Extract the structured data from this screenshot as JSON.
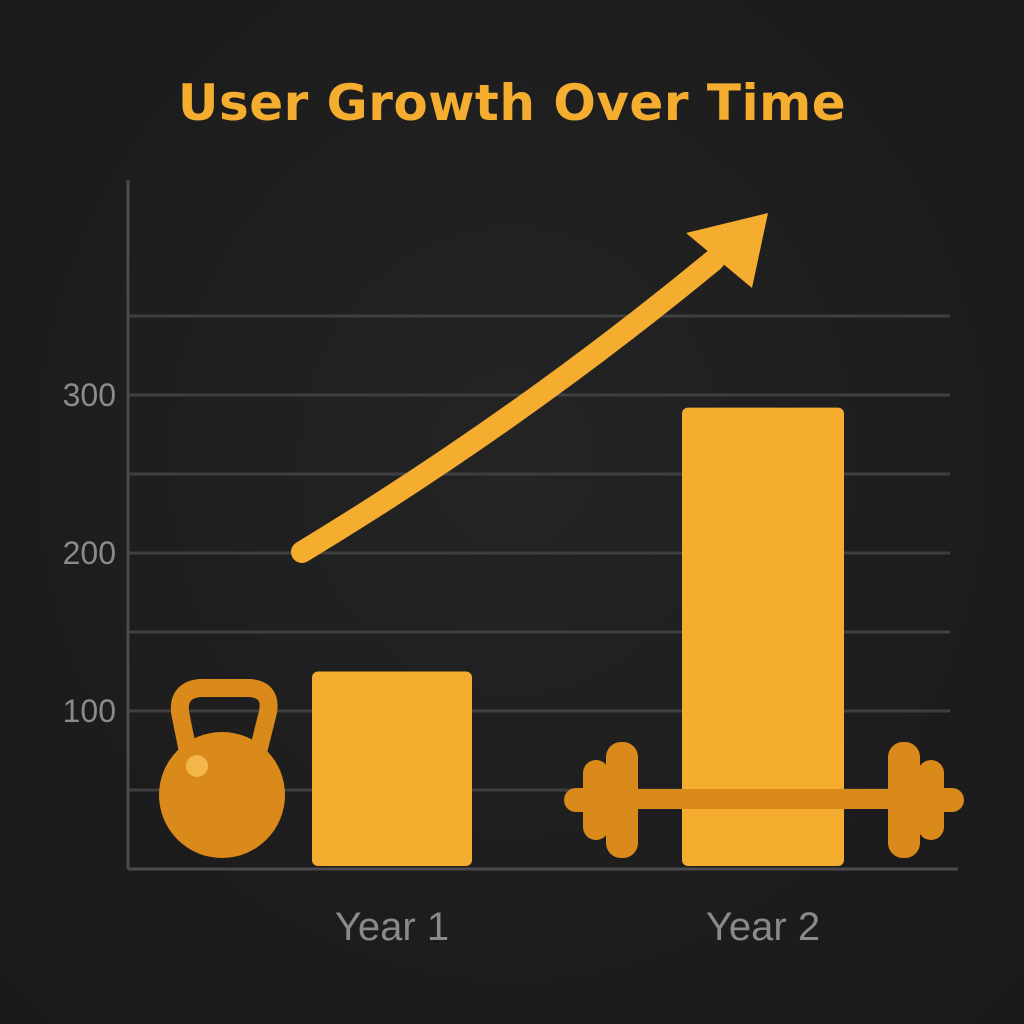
{
  "colors": {
    "accent": "#f4ad2f",
    "accent_dark": "#d98a1a",
    "grid": "#3f3f42",
    "axis": "#4b4b4e",
    "tick_text": "#8a8a8d",
    "background": "#1c1c1d"
  },
  "icons": [
    "kettlebell-icon",
    "dumbbell-icon",
    "trend-up-arrow-icon"
  ],
  "chart_data": {
    "type": "bar",
    "title": "User Growth Over Time",
    "xlabel": "",
    "ylabel": "",
    "categories": [
      "Year 1",
      "Year 2"
    ],
    "values": [
      125,
      292
    ],
    "ylim": [
      0,
      400
    ],
    "yticks": [
      100,
      200,
      300
    ],
    "grid": true,
    "trend_arrow": true
  }
}
